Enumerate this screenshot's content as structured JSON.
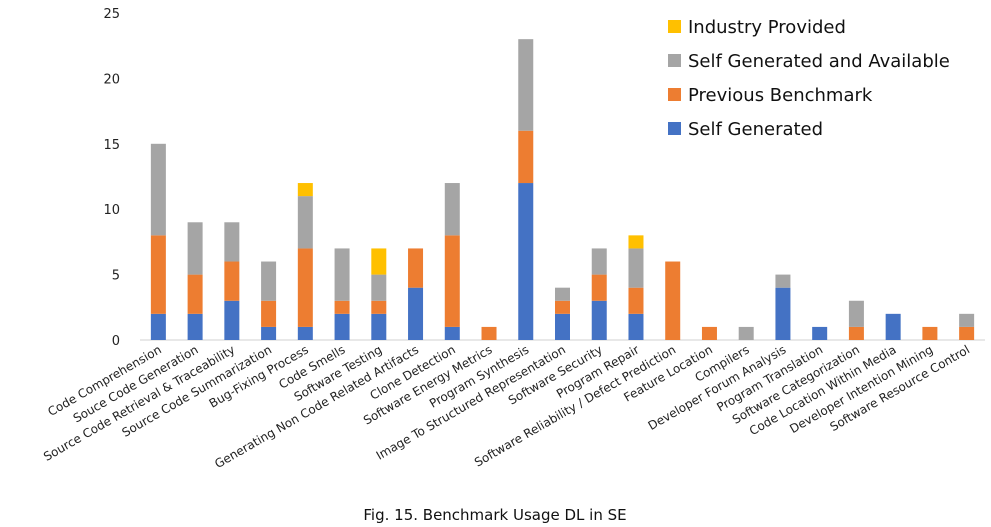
{
  "caption": "Fig. 15.  Benchmark Usage DL in SE",
  "chart_data": {
    "type": "bar",
    "stacked": true,
    "categories": [
      "Code Comprehension",
      "Souce Code Generation",
      "Source Code Retrieval & Traceability",
      "Source Code Summarization",
      "Bug-Fixing Process",
      "Code Smells",
      "Software Testing",
      "Generating Non Code Related Artifacts",
      "Clone Detection",
      "Software Energy Metrics",
      "Program Synthesis",
      "Image To Structured Representation",
      "Software Security",
      "Program Repair",
      "Software Reliability / Defect Prediction",
      "Feature Location",
      "Compilers",
      "Developer Forum Analysis",
      "Program Translation",
      "Software Categorization",
      "Code Location Within Media",
      "Developer Intention Mining",
      "Software Resource Control"
    ],
    "series": [
      {
        "name": "Self Generated",
        "color": "#4472C4",
        "values": [
          2,
          2,
          3,
          1,
          1,
          2,
          2,
          4,
          1,
          0,
          12,
          2,
          3,
          2,
          0,
          0,
          0,
          4,
          1,
          0,
          2,
          0,
          0
        ]
      },
      {
        "name": "Previous Benchmark",
        "color": "#ED7D31",
        "values": [
          6,
          3,
          3,
          2,
          6,
          1,
          1,
          3,
          7,
          1,
          4,
          1,
          2,
          2,
          6,
          1,
          0,
          0,
          0,
          1,
          0,
          1,
          1
        ]
      },
      {
        "name": "Self Generated and Available",
        "color": "#A5A5A5",
        "values": [
          7,
          4,
          3,
          3,
          4,
          4,
          2,
          0,
          4,
          0,
          7,
          1,
          2,
          3,
          0,
          0,
          1,
          1,
          0,
          2,
          0,
          0,
          1
        ]
      },
      {
        "name": "Industry Provided",
        "color": "#FFC000",
        "values": [
          0,
          0,
          0,
          0,
          1,
          0,
          2,
          0,
          0,
          0,
          0,
          0,
          0,
          1,
          0,
          0,
          0,
          0,
          0,
          0,
          0,
          0,
          0
        ]
      }
    ],
    "yticks": [
      "0",
      "5",
      "10",
      "15",
      "20",
      "25"
    ],
    "ylim": [
      0,
      25
    ],
    "grid": false,
    "legend": {
      "placement": "top-right",
      "order": [
        "Industry Provided",
        "Self Generated and Available",
        "Previous Benchmark",
        "Self Generated"
      ]
    }
  }
}
